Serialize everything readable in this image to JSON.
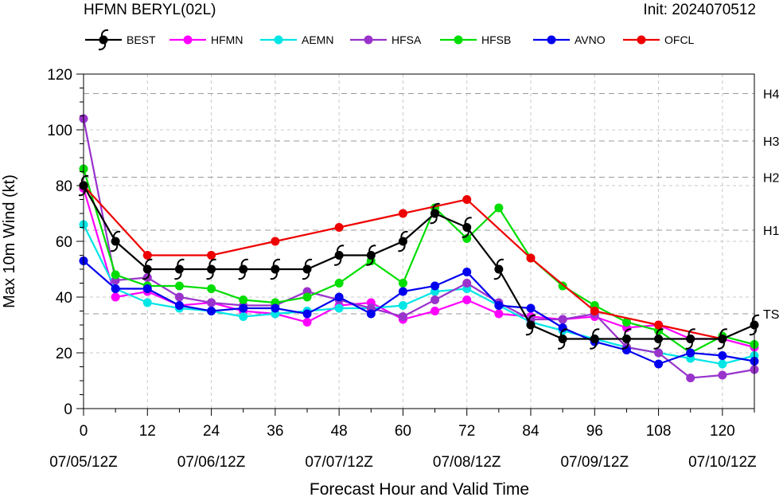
{
  "header": {
    "title": "HFMN BERYL(02L)",
    "init": "Init: 2024070512"
  },
  "chart_data": {
    "type": "line",
    "xlabel": "Forecast Hour and Valid Time",
    "ylabel": "Max 10m Wind (kt)",
    "xlim": [
      0,
      126
    ],
    "ylim": [
      0,
      120
    ],
    "xticks": [
      {
        "hour": 0,
        "label": "0",
        "date": "07/05/12Z"
      },
      {
        "hour": 12,
        "label": "12",
        "date": ""
      },
      {
        "hour": 24,
        "label": "24",
        "date": "07/06/12Z"
      },
      {
        "hour": 36,
        "label": "36",
        "date": ""
      },
      {
        "hour": 48,
        "label": "48",
        "date": "07/07/12Z"
      },
      {
        "hour": 60,
        "label": "60",
        "date": ""
      },
      {
        "hour": 72,
        "label": "72",
        "date": "07/08/12Z"
      },
      {
        "hour": 84,
        "label": "84",
        "date": ""
      },
      {
        "hour": 96,
        "label": "96",
        "date": "07/09/12Z"
      },
      {
        "hour": 108,
        "label": "108",
        "date": ""
      },
      {
        "hour": 120,
        "label": "120",
        "date": "07/10/12Z"
      }
    ],
    "yticks": [
      0,
      20,
      40,
      60,
      80,
      100,
      120
    ],
    "category_lines": [
      {
        "label": "TS",
        "value": 34
      },
      {
        "label": "H1",
        "value": 64
      },
      {
        "label": "H2",
        "value": 83
      },
      {
        "label": "H3",
        "value": 96
      },
      {
        "label": "H4",
        "value": 113
      }
    ],
    "legend_position": "top",
    "series": [
      {
        "name": "HFMN",
        "color": "#ff00ff",
        "points": [
          [
            0,
            79
          ],
          [
            6,
            40
          ],
          [
            12,
            42
          ],
          [
            18,
            37
          ],
          [
            24,
            38
          ],
          [
            30,
            35
          ],
          [
            36,
            34
          ],
          [
            42,
            31
          ],
          [
            48,
            37
          ],
          [
            54,
            38
          ],
          [
            60,
            32
          ],
          [
            66,
            35
          ],
          [
            72,
            39
          ],
          [
            78,
            34
          ],
          [
            84,
            33
          ],
          [
            90,
            32
          ],
          [
            96,
            33
          ],
          [
            102,
            29
          ],
          [
            108,
            30
          ],
          [
            114,
            25
          ],
          [
            120,
            25
          ],
          [
            126,
            22
          ]
        ]
      },
      {
        "name": "AEMN",
        "color": "#00e5e5",
        "points": [
          [
            0,
            66
          ],
          [
            6,
            43
          ],
          [
            12,
            38
          ],
          [
            18,
            36
          ],
          [
            24,
            35
          ],
          [
            30,
            33
          ],
          [
            36,
            34
          ],
          [
            42,
            35
          ],
          [
            48,
            36
          ],
          [
            54,
            36
          ],
          [
            60,
            37
          ],
          [
            66,
            42
          ],
          [
            72,
            43
          ],
          [
            78,
            37
          ],
          [
            84,
            31
          ],
          [
            90,
            28
          ],
          [
            96,
            25
          ],
          [
            102,
            22
          ],
          [
            108,
            20
          ],
          [
            114,
            18
          ],
          [
            120,
            16
          ],
          [
            126,
            19
          ]
        ]
      },
      {
        "name": "HFSA",
        "color": "#9933cc",
        "points": [
          [
            0,
            104
          ],
          [
            6,
            46
          ],
          [
            12,
            47
          ],
          [
            18,
            40
          ],
          [
            24,
            38
          ],
          [
            30,
            37
          ],
          [
            36,
            37
          ],
          [
            42,
            42
          ],
          [
            48,
            39
          ],
          [
            54,
            36
          ],
          [
            60,
            33
          ],
          [
            66,
            39
          ],
          [
            72,
            45
          ],
          [
            78,
            38
          ],
          [
            84,
            32
          ],
          [
            90,
            32
          ],
          [
            96,
            34
          ],
          [
            102,
            22
          ],
          [
            108,
            20
          ],
          [
            114,
            11
          ],
          [
            120,
            12
          ],
          [
            126,
            14
          ]
        ]
      },
      {
        "name": "HFSB",
        "color": "#00dd00",
        "points": [
          [
            0,
            86
          ],
          [
            6,
            48
          ],
          [
            12,
            44
          ],
          [
            18,
            44
          ],
          [
            24,
            43
          ],
          [
            30,
            39
          ],
          [
            36,
            38
          ],
          [
            42,
            40
          ],
          [
            48,
            45
          ],
          [
            54,
            53
          ],
          [
            60,
            45
          ],
          [
            66,
            72
          ],
          [
            72,
            61
          ],
          [
            78,
            72
          ],
          [
            84,
            54
          ],
          [
            90,
            44
          ],
          [
            96,
            37
          ],
          [
            102,
            31
          ],
          [
            108,
            28
          ],
          [
            114,
            20
          ],
          [
            120,
            26
          ],
          [
            126,
            23
          ]
        ]
      },
      {
        "name": "AVNO",
        "color": "#0000ee",
        "points": [
          [
            0,
            53
          ],
          [
            6,
            43
          ],
          [
            12,
            43
          ],
          [
            18,
            37
          ],
          [
            24,
            35
          ],
          [
            30,
            36
          ],
          [
            36,
            36
          ],
          [
            42,
            34
          ],
          [
            48,
            40
          ],
          [
            54,
            34
          ],
          [
            60,
            42
          ],
          [
            66,
            44
          ],
          [
            72,
            49
          ],
          [
            78,
            37
          ],
          [
            84,
            36
          ],
          [
            90,
            29
          ],
          [
            96,
            24
          ],
          [
            102,
            21
          ],
          [
            108,
            16
          ],
          [
            114,
            20
          ],
          [
            120,
            19
          ],
          [
            126,
            17
          ]
        ]
      },
      {
        "name": "OFCL",
        "color": "#ee0000",
        "points": [
          [
            0,
            80
          ],
          [
            12,
            55
          ],
          [
            24,
            55
          ],
          [
            36,
            60
          ],
          [
            48,
            65
          ],
          [
            60,
            70
          ],
          [
            72,
            75
          ],
          [
            84,
            54
          ],
          [
            96,
            35
          ],
          [
            108,
            30
          ],
          [
            120,
            25
          ]
        ]
      },
      {
        "name": "BEST",
        "color": "#000000",
        "points": [
          [
            0,
            80
          ],
          [
            6,
            60
          ],
          [
            12,
            50
          ],
          [
            18,
            50
          ],
          [
            24,
            50
          ],
          [
            30,
            50
          ],
          [
            36,
            50
          ],
          [
            42,
            50
          ],
          [
            48,
            55
          ],
          [
            54,
            55
          ],
          [
            60,
            60
          ],
          [
            66,
            70
          ],
          [
            72,
            65
          ],
          [
            78,
            50
          ],
          [
            84,
            30
          ],
          [
            90,
            25
          ],
          [
            96,
            25
          ],
          [
            102,
            25
          ],
          [
            108,
            25
          ],
          [
            114,
            25
          ],
          [
            120,
            25
          ],
          [
            126,
            30
          ]
        ]
      }
    ],
    "legend_order": [
      "BEST",
      "HFMN",
      "AEMN",
      "HFSA",
      "HFSB",
      "AVNO",
      "OFCL"
    ]
  }
}
